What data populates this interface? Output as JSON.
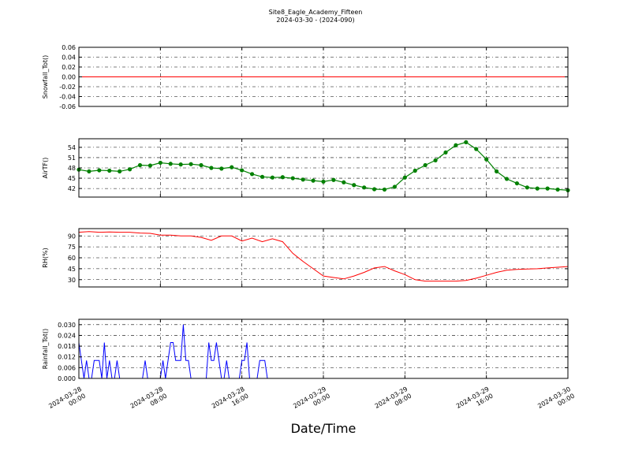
{
  "figure": {
    "title": "Site8_Eagle_Academy_Fifteen",
    "subtitle": "2024-03-30 - (2024-090)",
    "xlabel": "Date/Time"
  },
  "chart_data": [
    {
      "type": "line",
      "ylabel": "Snowfall_Tot()",
      "ylim": [
        -0.06,
        0.06
      ],
      "yticks": [
        -0.06,
        -0.04,
        -0.02,
        0.0,
        0.02,
        0.04,
        0.06
      ],
      "ytick_labels": [
        "-0.06",
        "-0.04",
        "-0.02",
        "0.00",
        "0.02",
        "0.04",
        "0.06"
      ],
      "color": "#ff0000",
      "marker": false,
      "grid": true,
      "series": [
        {
          "x": [
            0,
            48
          ],
          "y": [
            0,
            0
          ]
        }
      ]
    },
    {
      "type": "line",
      "ylabel": "AirTF()",
      "ylim": [
        39.5,
        56.5
      ],
      "yticks": [
        42,
        45,
        48,
        51,
        54
      ],
      "ytick_labels": [
        "42",
        "45",
        "48",
        "51",
        "54"
      ],
      "color": "#008000",
      "marker": true,
      "grid": true,
      "series": [
        {
          "x": [
            0,
            1,
            2,
            3,
            4,
            5,
            6,
            7,
            8,
            9,
            10,
            11,
            12,
            13,
            14,
            15,
            16,
            17,
            18,
            19,
            20,
            21,
            22,
            23,
            24,
            25,
            26,
            27,
            28,
            29,
            30,
            31,
            32,
            33,
            34,
            35,
            36,
            37,
            38,
            39,
            40,
            41,
            42,
            43,
            44,
            45,
            46,
            47,
            48
          ],
          "y": [
            47.5,
            47.0,
            47.3,
            47.2,
            47.0,
            47.6,
            48.8,
            48.7,
            49.5,
            49.2,
            49.0,
            49.1,
            48.8,
            48.0,
            47.8,
            48.2,
            47.3,
            46.2,
            45.4,
            45.2,
            45.3,
            45.0,
            44.6,
            44.3,
            44.0,
            44.5,
            43.8,
            43.0,
            42.3,
            41.8,
            41.7,
            42.5,
            45.2,
            47.2,
            48.8,
            50.2,
            52.5,
            54.6,
            55.5,
            53.5,
            50.5,
            47.0,
            44.8,
            43.5,
            42.3,
            42.0,
            42.0,
            41.7,
            41.5
          ]
        }
      ]
    },
    {
      "type": "line",
      "ylabel": "RH(%)",
      "ylim": [
        20,
        100
      ],
      "yticks": [
        30,
        45,
        60,
        75,
        90
      ],
      "ytick_labels": [
        "30",
        "45",
        "60",
        "75",
        "90"
      ],
      "color": "#ff0000",
      "marker": false,
      "grid": true,
      "series": [
        {
          "x": [
            0,
            1,
            2,
            3,
            4,
            5,
            6,
            7,
            8,
            9,
            10,
            11,
            12,
            13,
            14,
            15,
            16,
            17,
            18,
            19,
            20,
            21,
            22,
            23,
            24,
            25,
            26,
            27,
            28,
            29,
            30,
            31,
            32,
            33,
            34,
            35,
            36,
            37,
            38,
            39,
            40,
            41,
            42,
            43,
            44,
            45,
            46,
            47,
            48
          ],
          "y": [
            95,
            96,
            95,
            95.5,
            95,
            95,
            94,
            93.5,
            91,
            91,
            90,
            90,
            88,
            84,
            90,
            90,
            83,
            87,
            82,
            86,
            82,
            66,
            55,
            45,
            35,
            33,
            31,
            35,
            40,
            46,
            48,
            42,
            37,
            30,
            28,
            28,
            28,
            28,
            29,
            32,
            36,
            40,
            43,
            44,
            44.5,
            45,
            46,
            47,
            48
          ]
        }
      ]
    },
    {
      "type": "line",
      "ylabel": "Rainfall_Tot()",
      "ylim": [
        0,
        0.033
      ],
      "yticks": [
        0.0,
        0.006,
        0.012,
        0.018,
        0.024,
        0.03
      ],
      "ytick_labels": [
        "0.000",
        "0.006",
        "0.012",
        "0.018",
        "0.024",
        "0.030"
      ],
      "color": "#0000ff",
      "marker": false,
      "grid": true,
      "series": [
        {
          "x": [
            0,
            0.25,
            0.5,
            0.75,
            1.0,
            1.25,
            1.5,
            1.75,
            2.0,
            2.25,
            2.5,
            2.75,
            3.0,
            3.25,
            3.5,
            3.75,
            4.0,
            4.25,
            6.25,
            6.5,
            6.75,
            8.0,
            8.25,
            8.5,
            9.0,
            9.25,
            9.5,
            9.75,
            10.0,
            10.25,
            10.5,
            10.75,
            11.0,
            11.25,
            12.5,
            12.75,
            13.0,
            13.25,
            13.5,
            13.75,
            14.0,
            14.25,
            14.5,
            14.75,
            15.0,
            15.25,
            15.75,
            16.0,
            16.25,
            16.5,
            16.75,
            17.5,
            17.75,
            18.0,
            18.25,
            18.5,
            20.0
          ],
          "y": [
            0.02,
            0.01,
            0,
            0.01,
            0,
            0,
            0.01,
            0.01,
            0.01,
            0,
            0.02,
            0,
            0.01,
            0,
            0,
            0.01,
            0,
            0,
            0,
            0.01,
            0,
            0,
            0.01,
            0,
            0.02,
            0.02,
            0.01,
            0.01,
            0.01,
            0.03,
            0.01,
            0.01,
            0,
            0,
            0,
            0.02,
            0.01,
            0.01,
            0.02,
            0.01,
            0,
            0,
            0.01,
            0,
            0,
            0,
            0,
            0.01,
            0.01,
            0.02,
            0,
            0,
            0.01,
            0.01,
            0.01,
            0,
            0
          ]
        }
      ]
    }
  ],
  "x_axis": {
    "range_hours": [
      0,
      48
    ],
    "ticks_hours": [
      0,
      8,
      16,
      24,
      32,
      40,
      48
    ],
    "tick_labels": [
      [
        "2024-03-28",
        "00:00"
      ],
      [
        "2024-03-28",
        "08:00"
      ],
      [
        "2024-03-28",
        "16:00"
      ],
      [
        "2024-03-29",
        "00:00"
      ],
      [
        "2024-03-29",
        "08:00"
      ],
      [
        "2024-03-29",
        "16:00"
      ],
      [
        "2024-03-30",
        "00:00"
      ]
    ]
  }
}
